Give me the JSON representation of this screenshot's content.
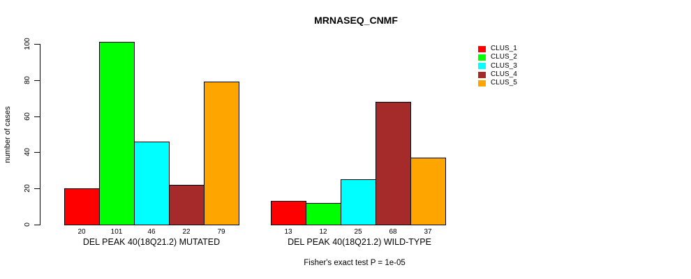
{
  "title": "MRNASEQ_CNMF",
  "footnote": "Fisher's exact test P = 1e-05",
  "chart_data": {
    "type": "bar",
    "title": "MRNASEQ_CNMF",
    "xlabel": "",
    "ylabel": "number of cases",
    "ylim": [
      0,
      100
    ],
    "yticks": [
      0,
      20,
      40,
      60,
      80,
      100
    ],
    "grid": false,
    "legend_position": "right",
    "series": [
      "CLUS_1",
      "CLUS_2",
      "CLUS_3",
      "CLUS_4",
      "CLUS_5"
    ],
    "colors": [
      "#FF0000",
      "#00FF00",
      "#00FFFF",
      "#A52A2A",
      "#FFA500"
    ],
    "groups": [
      {
        "label": "DEL PEAK 40(18Q21.2) MUTATED",
        "values": [
          20,
          101,
          46,
          22,
          79
        ],
        "bar_labels": [
          "20",
          "101",
          "46",
          "22",
          "79"
        ]
      },
      {
        "label": "DEL PEAK 40(18Q21.2) WILD-TYPE",
        "values": [
          13,
          12,
          25,
          68,
          37
        ],
        "bar_labels": [
          "13",
          "12",
          "25",
          "68",
          "37"
        ]
      }
    ],
    "annotation": "Fisher's exact test P = 1e-05"
  }
}
